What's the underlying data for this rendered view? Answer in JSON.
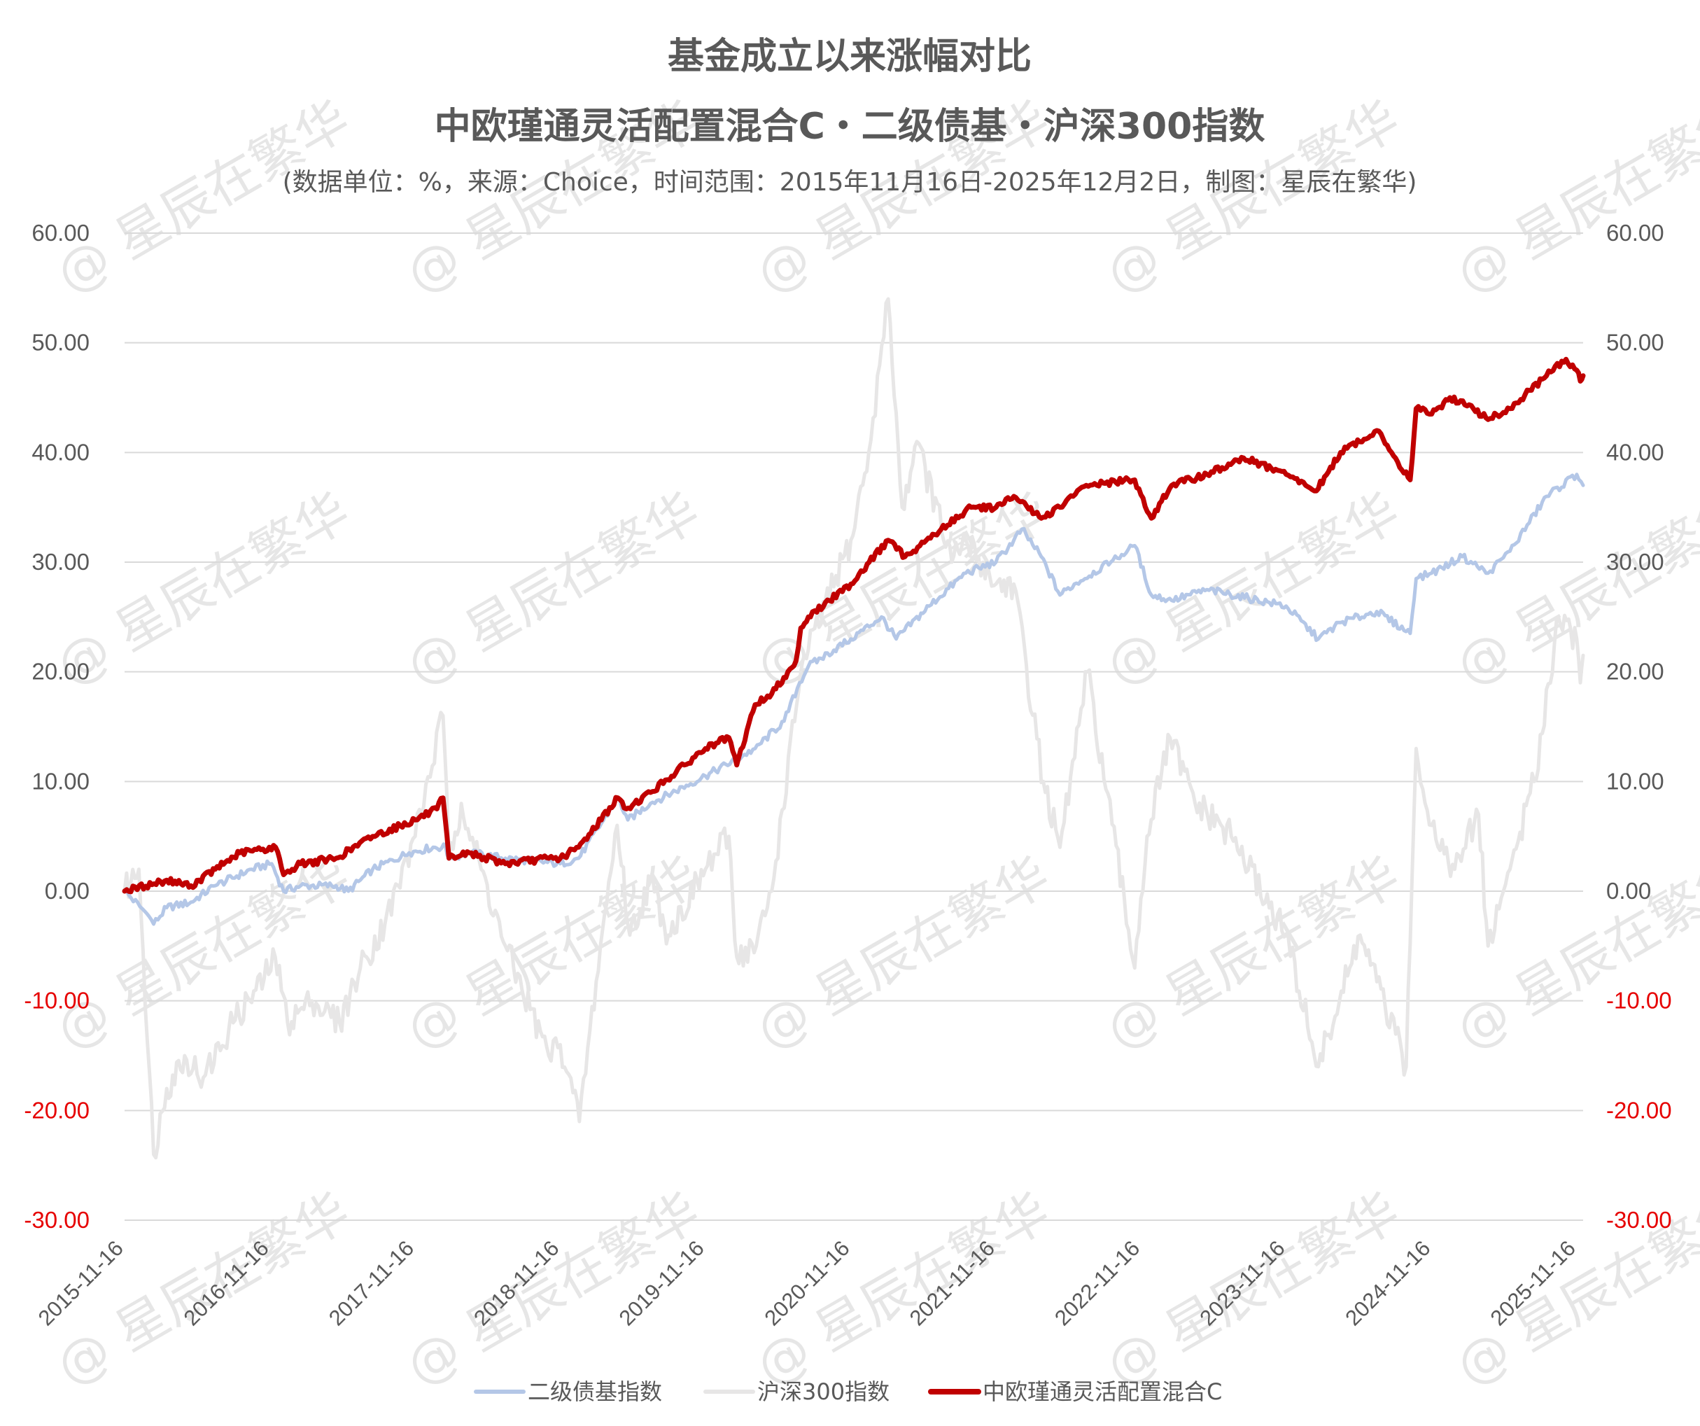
{
  "chart_data": {
    "type": "line",
    "title": "基金成立以来涨幅对比",
    "subtitle": "中欧瑾通灵活配置混合C・二级债基・沪深300指数",
    "note": "(数据单位：%，来源：Choice，时间范围：2015年11月16日-2025年12月2日，制图：星辰在繁华)",
    "watermark": "@ 星辰在繁华",
    "x_ticks": [
      "2015-11-16",
      "2016-11-16",
      "2017-11-16",
      "2018-11-16",
      "2019-11-16",
      "2020-11-16",
      "2021-11-16",
      "2022-11-16",
      "2023-11-16",
      "2024-11-16",
      "2025-11-16"
    ],
    "x_range": [
      "2015-11-16",
      "2025-12-02"
    ],
    "ylim": [
      -30,
      60
    ],
    "y_ticks": [
      "-30.00",
      "-20.00",
      "-10.00",
      "0.00",
      "10.00",
      "20.00",
      "30.00",
      "40.00",
      "50.00",
      "60.00"
    ],
    "y_ticks_right": [
      "-30.00",
      "-20.00",
      "-10.00",
      "0.00",
      "10.00",
      "20.00",
      "30.00",
      "40.00",
      "50.00",
      "60.00"
    ],
    "negative_tick_color": "#e60000",
    "positive_tick_color": "#595959",
    "grid": true,
    "legend_position": "bottom",
    "series": [
      {
        "name": "二级债基指数",
        "color": "#b4c7e7",
        "points": [
          [
            "2015-11-16",
            0
          ],
          [
            "2016-01-10",
            -2
          ],
          [
            "2016-01-28",
            -3
          ],
          [
            "2016-03-01",
            -1.5
          ],
          [
            "2016-05-01",
            -1
          ],
          [
            "2016-07-01",
            0.5
          ],
          [
            "2016-10-01",
            2
          ],
          [
            "2016-11-20",
            2.5
          ],
          [
            "2016-12-20",
            0
          ],
          [
            "2017-02-01",
            0.5
          ],
          [
            "2017-05-01",
            0.5
          ],
          [
            "2017-06-01",
            0
          ],
          [
            "2017-08-01",
            2
          ],
          [
            "2017-11-01",
            3.5
          ],
          [
            "2017-12-31",
            4
          ],
          [
            "2018-02-01",
            4
          ],
          [
            "2018-02-08",
            3
          ],
          [
            "2018-04-01",
            3.5
          ],
          [
            "2018-07-01",
            3
          ],
          [
            "2018-11-16",
            2.5
          ],
          [
            "2019-01-01",
            3
          ],
          [
            "2019-04-10",
            8.5
          ],
          [
            "2019-05-05",
            6.5
          ],
          [
            "2019-07-01",
            8
          ],
          [
            "2019-11-16",
            10.5
          ],
          [
            "2020-02-01",
            12
          ],
          [
            "2020-03-20",
            13
          ],
          [
            "2020-06-01",
            15.5
          ],
          [
            "2020-07-10",
            19
          ],
          [
            "2020-08-01",
            20.5
          ],
          [
            "2020-11-16",
            23
          ],
          [
            "2021-02-01",
            25
          ],
          [
            "2021-03-10",
            23
          ],
          [
            "2021-06-01",
            26
          ],
          [
            "2021-09-01",
            29
          ],
          [
            "2021-11-16",
            30
          ],
          [
            "2021-12-31",
            32
          ],
          [
            "2022-01-20",
            33
          ],
          [
            "2022-03-10",
            30.5
          ],
          [
            "2022-04-26",
            27
          ],
          [
            "2022-06-01",
            28
          ],
          [
            "2022-09-01",
            30
          ],
          [
            "2022-10-31",
            31.5
          ],
          [
            "2022-12-12",
            27
          ],
          [
            "2023-02-01",
            26.5
          ],
          [
            "2023-05-01",
            27.5
          ],
          [
            "2023-11-16",
            26
          ],
          [
            "2024-02-05",
            23
          ],
          [
            "2024-04-01",
            24.5
          ],
          [
            "2024-07-01",
            25.5
          ],
          [
            "2024-09-23",
            23.5
          ],
          [
            "2024-10-08",
            28.5
          ],
          [
            "2024-11-16",
            29
          ],
          [
            "2025-02-01",
            30.5
          ],
          [
            "2025-04-07",
            29
          ],
          [
            "2025-06-01",
            31
          ],
          [
            "2025-09-01",
            36
          ],
          [
            "2025-11-16",
            38
          ],
          [
            "2025-12-02",
            37
          ]
        ]
      },
      {
        "name": "沪深300指数",
        "color": "#e7e6e6",
        "points": [
          [
            "2015-11-16",
            0
          ],
          [
            "2015-12-22",
            2
          ],
          [
            "2016-01-28",
            -24
          ],
          [
            "2016-03-01",
            -18
          ],
          [
            "2016-04-15",
            -15
          ],
          [
            "2016-06-01",
            -17
          ],
          [
            "2016-08-15",
            -12
          ],
          [
            "2016-11-01",
            -8
          ],
          [
            "2016-11-29",
            -6
          ],
          [
            "2016-12-30",
            -12
          ],
          [
            "2017-03-01",
            -10
          ],
          [
            "2017-05-10",
            -12
          ],
          [
            "2017-07-01",
            -7
          ],
          [
            "2017-09-01",
            -3
          ],
          [
            "2017-11-16",
            5
          ],
          [
            "2018-01-25",
            16
          ],
          [
            "2018-02-09",
            3
          ],
          [
            "2018-03-12",
            8
          ],
          [
            "2018-05-01",
            2
          ],
          [
            "2018-07-01",
            -5
          ],
          [
            "2018-10-18",
            -15
          ],
          [
            "2018-11-16",
            -14
          ],
          [
            "2019-01-03",
            -21
          ],
          [
            "2019-02-25",
            -5
          ],
          [
            "2019-04-08",
            6
          ],
          [
            "2019-05-10",
            -4
          ],
          [
            "2019-07-01",
            1
          ],
          [
            "2019-08-15",
            -4
          ],
          [
            "2019-11-16",
            2
          ],
          [
            "2020-01-14",
            5
          ],
          [
            "2020-02-03",
            -6
          ],
          [
            "2020-03-23",
            -5
          ],
          [
            "2020-05-01",
            0
          ],
          [
            "2020-07-13",
            20
          ],
          [
            "2020-08-01",
            22
          ],
          [
            "2020-11-16",
            32
          ],
          [
            "2020-12-31",
            40
          ],
          [
            "2021-02-18",
            54
          ],
          [
            "2021-03-25",
            35
          ],
          [
            "2021-05-01",
            41
          ],
          [
            "2021-07-28",
            30
          ],
          [
            "2021-09-01",
            32
          ],
          [
            "2021-11-16",
            28
          ],
          [
            "2021-12-31",
            28
          ],
          [
            "2022-03-15",
            10
          ],
          [
            "2022-04-26",
            4
          ],
          [
            "2022-07-04",
            20
          ],
          [
            "2022-10-31",
            -7
          ],
          [
            "2022-12-01",
            5
          ],
          [
            "2023-01-28",
            14
          ],
          [
            "2023-04-01",
            8
          ],
          [
            "2023-07-01",
            5
          ],
          [
            "2023-11-16",
            -4
          ],
          [
            "2024-02-05",
            -16
          ],
          [
            "2024-05-20",
            -4
          ],
          [
            "2024-09-13",
            -16
          ],
          [
            "2024-10-08",
            13
          ],
          [
            "2024-11-16",
            6
          ],
          [
            "2025-01-13",
            2
          ],
          [
            "2025-03-14",
            7
          ],
          [
            "2025-04-07",
            -5
          ],
          [
            "2025-06-01",
            2
          ],
          [
            "2025-08-01",
            10
          ],
          [
            "2025-10-01",
            25
          ],
          [
            "2025-11-16",
            23
          ],
          [
            "2025-11-25",
            19
          ],
          [
            "2025-12-02",
            21.5
          ]
        ]
      },
      {
        "name": "中欧瑾通灵活配置混合C",
        "color": "#c00000",
        "points": [
          [
            "2015-11-16",
            0
          ],
          [
            "2016-03-01",
            1
          ],
          [
            "2016-05-01",
            0.5
          ],
          [
            "2016-07-01",
            2
          ],
          [
            "2016-09-01",
            3.5
          ],
          [
            "2016-11-30",
            4
          ],
          [
            "2016-12-20",
            1.5
          ],
          [
            "2017-02-01",
            2.5
          ],
          [
            "2017-05-01",
            3
          ],
          [
            "2017-08-01",
            5
          ],
          [
            "2017-11-16",
            6.5
          ],
          [
            "2018-01-10",
            7.5
          ],
          [
            "2018-01-25",
            8.5
          ],
          [
            "2018-02-09",
            3
          ],
          [
            "2018-04-01",
            3.5
          ],
          [
            "2018-07-01",
            2.5
          ],
          [
            "2018-10-18",
            3
          ],
          [
            "2018-11-16",
            3
          ],
          [
            "2019-01-01",
            4
          ],
          [
            "2019-04-10",
            8.5
          ],
          [
            "2019-05-01",
            7.5
          ],
          [
            "2019-07-01",
            9
          ],
          [
            "2019-11-16",
            13
          ],
          [
            "2020-01-14",
            14
          ],
          [
            "2020-02-03",
            11.5
          ],
          [
            "2020-03-20",
            17
          ],
          [
            "2020-05-01",
            18
          ],
          [
            "2020-07-01",
            21
          ],
          [
            "2020-07-13",
            24
          ],
          [
            "2020-08-01",
            25
          ],
          [
            "2020-11-16",
            28
          ],
          [
            "2021-01-01",
            30
          ],
          [
            "2021-02-18",
            32
          ],
          [
            "2021-04-01",
            30.5
          ],
          [
            "2021-07-01",
            33
          ],
          [
            "2021-09-15",
            35
          ],
          [
            "2021-11-16",
            35
          ],
          [
            "2021-12-31",
            36
          ],
          [
            "2022-03-10",
            34
          ],
          [
            "2022-04-26",
            35
          ],
          [
            "2022-07-01",
            37
          ],
          [
            "2022-10-31",
            37.5
          ],
          [
            "2022-12-12",
            34
          ],
          [
            "2023-02-01",
            37
          ],
          [
            "2023-05-01",
            38
          ],
          [
            "2023-08-01",
            39.5
          ],
          [
            "2023-11-16",
            38
          ],
          [
            "2024-01-31",
            36.5
          ],
          [
            "2024-04-01",
            40
          ],
          [
            "2024-07-01",
            42
          ],
          [
            "2024-09-23",
            37.5
          ],
          [
            "2024-10-08",
            44
          ],
          [
            "2024-11-16",
            43.5
          ],
          [
            "2025-01-01",
            45
          ],
          [
            "2025-03-01",
            44
          ],
          [
            "2025-04-07",
            43
          ],
          [
            "2025-06-01",
            44
          ],
          [
            "2025-09-01",
            47
          ],
          [
            "2025-10-20",
            48.5
          ],
          [
            "2025-11-16",
            47.5
          ],
          [
            "2025-11-25",
            46.5
          ],
          [
            "2025-12-02",
            47
          ]
        ]
      }
    ]
  }
}
